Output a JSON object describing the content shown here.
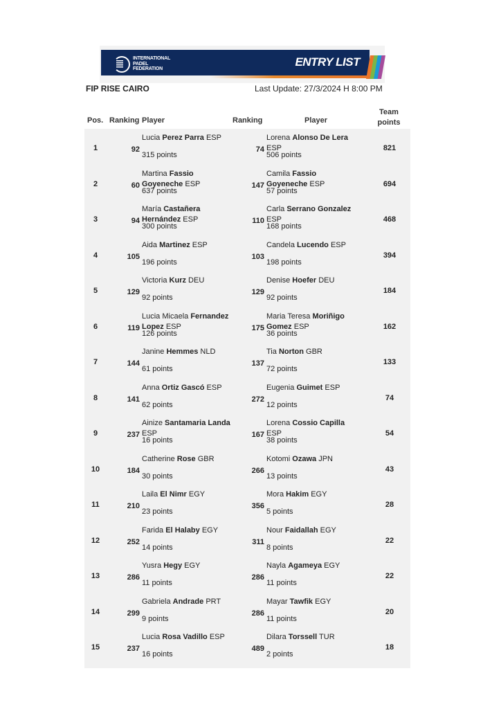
{
  "header": {
    "logo_text": "INTERNATIONAL PADEL FEDERATION",
    "banner_label": "ENTRY LIST",
    "tournament": "FIP RISE CAIRO",
    "last_update": "Last Update: 27/3/2024 H 8:00 PM"
  },
  "columns": {
    "pos": "Pos.",
    "ranking1": "Ranking",
    "player1": "Player",
    "ranking2": "Ranking",
    "player2": "Player",
    "team_points_1": "Team",
    "team_points_2": "points"
  },
  "rows": [
    {
      "pos": "1",
      "p1": {
        "rank": "92",
        "first": "Lucia ",
        "last": "Perez Parra",
        "nat": " ESP",
        "points": "315 points"
      },
      "p2": {
        "rank": "74",
        "first": "Lorena ",
        "last": "Alonso De Lera",
        "nat": " ESP",
        "points": "506 points"
      },
      "team": "821"
    },
    {
      "pos": "2",
      "p1": {
        "rank": "60",
        "first": "Martina ",
        "last": "Fassio Goyeneche",
        "nat": " ESP",
        "points": "637 points"
      },
      "p2": {
        "rank": "147",
        "first": "Camila ",
        "last": "Fassio Goyeneche",
        "nat": " ESP",
        "points": "57 points"
      },
      "team": "694"
    },
    {
      "pos": "3",
      "p1": {
        "rank": "94",
        "first": "María ",
        "last": "Castañera Hernández",
        "nat": " ESP",
        "points": "300 points"
      },
      "p2": {
        "rank": "110",
        "first": "Carla ",
        "last": "Serrano Gonzalez",
        "nat": " ESP",
        "points": "168 points"
      },
      "team": "468"
    },
    {
      "pos": "4",
      "p1": {
        "rank": "105",
        "first": "Aida ",
        "last": "Martinez",
        "nat": " ESP",
        "points": "196 points"
      },
      "p2": {
        "rank": "103",
        "first": "Candela ",
        "last": "Lucendo",
        "nat": " ESP",
        "points": "198 points"
      },
      "team": "394"
    },
    {
      "pos": "5",
      "p1": {
        "rank": "129",
        "first": "Victoria ",
        "last": "Kurz",
        "nat": " DEU",
        "points": "92 points"
      },
      "p2": {
        "rank": "129",
        "first": "Denise ",
        "last": "Hoefer",
        "nat": " DEU",
        "points": "92 points"
      },
      "team": "184"
    },
    {
      "pos": "6",
      "p1": {
        "rank": "119",
        "first": "Lucia Micaela ",
        "last": "Fernandez Lopez",
        "nat": " ESP",
        "points": "126 points"
      },
      "p2": {
        "rank": "175",
        "first": "Maria Teresa ",
        "last": "Moriñigo Gomez",
        "nat": " ESP",
        "points": "36 points"
      },
      "team": "162"
    },
    {
      "pos": "7",
      "p1": {
        "rank": "144",
        "first": "Janine ",
        "last": "Hemmes",
        "nat": " NLD",
        "points": "61 points"
      },
      "p2": {
        "rank": "137",
        "first": "Tia ",
        "last": "Norton",
        "nat": " GBR",
        "points": "72 points"
      },
      "team": "133"
    },
    {
      "pos": "8",
      "p1": {
        "rank": "141",
        "first": "Anna ",
        "last": "Ortiz Gascó",
        "nat": " ESP",
        "points": "62 points"
      },
      "p2": {
        "rank": "272",
        "first": "Eugenia ",
        "last": "Guimet",
        "nat": " ESP",
        "points": "12 points"
      },
      "team": "74"
    },
    {
      "pos": "9",
      "p1": {
        "rank": "237",
        "first": "Ainize ",
        "last": "Santamaria Landa",
        "nat": " ESP",
        "points": "16 points"
      },
      "p2": {
        "rank": "167",
        "first": "Lorena ",
        "last": "Cossio Capilla",
        "nat": " ESP",
        "points": "38 points"
      },
      "team": "54"
    },
    {
      "pos": "10",
      "p1": {
        "rank": "184",
        "first": "Catherine ",
        "last": "Rose",
        "nat": " GBR",
        "points": "30 points"
      },
      "p2": {
        "rank": "266",
        "first": "Kotomi ",
        "last": "Ozawa",
        "nat": " JPN",
        "points": "13 points"
      },
      "team": "43"
    },
    {
      "pos": "11",
      "p1": {
        "rank": "210",
        "first": "Laila ",
        "last": "El Nimr",
        "nat": " EGY",
        "points": "23 points"
      },
      "p2": {
        "rank": "356",
        "first": "Mora ",
        "last": "Hakim",
        "nat": " EGY",
        "points": "5 points"
      },
      "team": "28"
    },
    {
      "pos": "12",
      "p1": {
        "rank": "252",
        "first": "Farida ",
        "last": "El Halaby",
        "nat": " EGY",
        "points": "14 points"
      },
      "p2": {
        "rank": "311",
        "first": "Nour ",
        "last": "Faidallah",
        "nat": " EGY",
        "points": "8 points"
      },
      "team": "22"
    },
    {
      "pos": "13",
      "p1": {
        "rank": "286",
        "first": "Yusra ",
        "last": "Hegy",
        "nat": " EGY",
        "points": "11 points"
      },
      "p2": {
        "rank": "286",
        "first": "Nayla ",
        "last": "Agameya",
        "nat": " EGY",
        "points": "11 points"
      },
      "team": "22"
    },
    {
      "pos": "14",
      "p1": {
        "rank": "299",
        "first": "Gabriela ",
        "last": "Andrade",
        "nat": " PRT",
        "points": "9 points"
      },
      "p2": {
        "rank": "286",
        "first": "Mayar ",
        "last": "Tawfik",
        "nat": " EGY",
        "points": "11 points"
      },
      "team": "20"
    },
    {
      "pos": "15",
      "p1": {
        "rank": "237",
        "first": "Lucia ",
        "last": "Rosa Vadillo",
        "nat": " ESP",
        "points": "16 points"
      },
      "p2": {
        "rank": "489",
        "first": "Dilara ",
        "last": "Torssell",
        "nat": " TUR",
        "points": "2 points"
      },
      "team": "18"
    }
  ]
}
